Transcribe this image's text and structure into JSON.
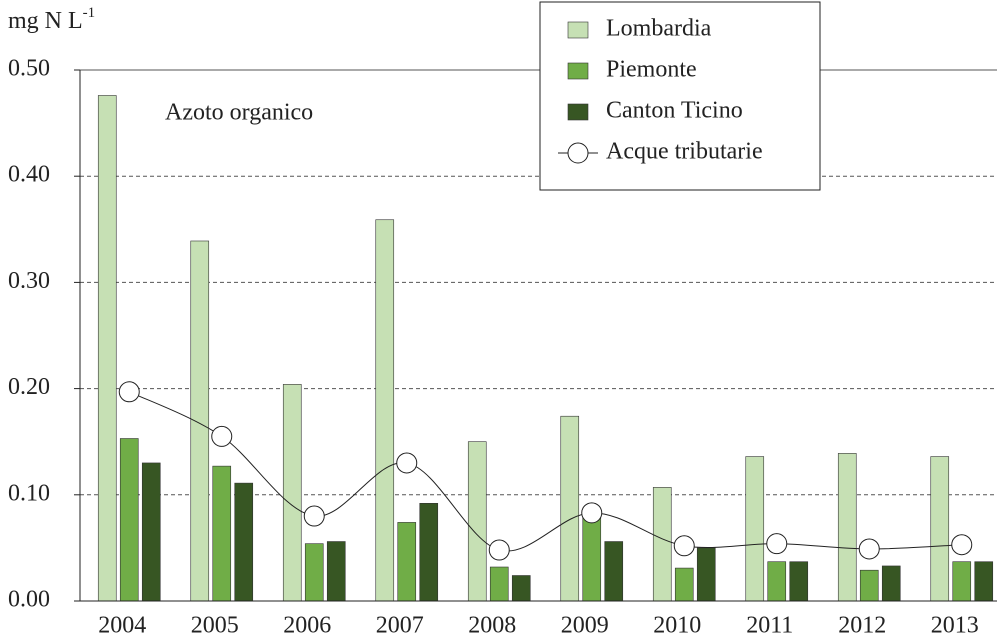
{
  "chart_data": {
    "type": "bar",
    "y_label": "mg N L",
    "y_label_sup": "-1",
    "annotation": "Azoto organico",
    "categories": [
      "2004",
      "2005",
      "2006",
      "2007",
      "2008",
      "2009",
      "2010",
      "2011",
      "2012",
      "2013"
    ],
    "series": [
      {
        "name": "Lombardia",
        "color": "#c6e0b4",
        "values": [
          0.476,
          0.339,
          0.204,
          0.359,
          0.15,
          0.174,
          0.107,
          0.136,
          0.139,
          0.136
        ]
      },
      {
        "name": "Piemonte",
        "color": "#70ad47",
        "values": [
          0.153,
          0.127,
          0.054,
          0.074,
          0.032,
          0.08,
          0.031,
          0.037,
          0.029,
          0.037
        ]
      },
      {
        "name": "Canton Ticino",
        "color": "#375623",
        "values": [
          0.13,
          0.111,
          0.056,
          0.092,
          0.024,
          0.056,
          0.05,
          0.037,
          0.033,
          0.037
        ]
      },
      {
        "name": "Acque tributarie",
        "type": "line",
        "color": "#ffffff",
        "values": [
          0.197,
          0.155,
          0.08,
          0.13,
          0.048,
          0.083,
          0.052,
          0.054,
          0.049,
          0.053
        ]
      }
    ],
    "ylim": [
      0,
      0.5
    ],
    "yticks": [
      {
        "value": 0,
        "label": "0.00"
      },
      {
        "value": 0.1,
        "label": "0.10"
      },
      {
        "value": 0.2,
        "label": "0.20"
      },
      {
        "value": 0.3,
        "label": "0.30"
      },
      {
        "value": 0.4,
        "label": "0.40"
      },
      {
        "value": 0.5,
        "label": "0.50"
      }
    ],
    "grid": true,
    "legend": "top-right"
  }
}
